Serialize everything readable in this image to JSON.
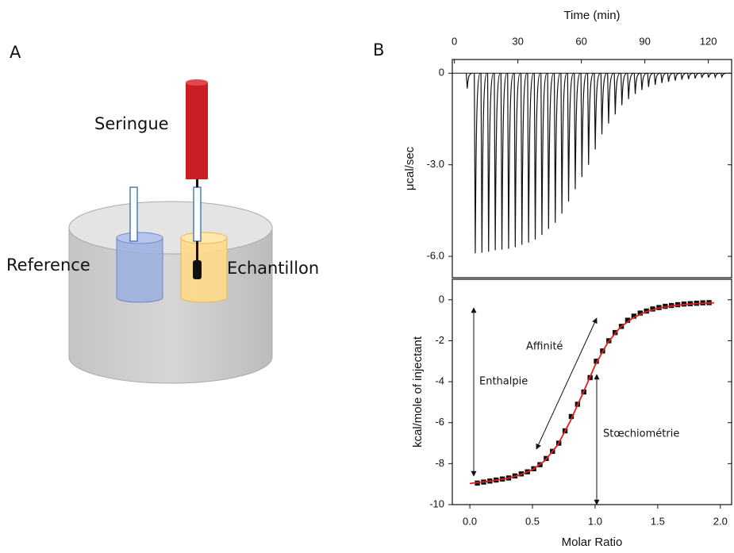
{
  "diagram": {
    "panel_label": "A",
    "syringe_label": "Seringue",
    "reference_label": "Reference",
    "sample_label": "Echantillon"
  },
  "panel_label_b": "B",
  "chart_data": [
    {
      "type": "thermogram",
      "xlabel": "Time (min)",
      "ylabel": "μcal/sec",
      "xlim": [
        -1,
        131
      ],
      "xticks": [
        0,
        30,
        60,
        90,
        120
      ],
      "ylim": [
        -6.7,
        0.45
      ],
      "yticks": [
        0,
        {
          "value": -3,
          "label": "-3.0"
        },
        {
          "value": -6,
          "label": "-6.0"
        }
      ],
      "series": [
        {
          "color": "#111111",
          "x": [
            5.6,
            9.4,
            12.55,
            15.7,
            18.85,
            22.0,
            25.15,
            28.3,
            31.45,
            34.6,
            37.75,
            40.9,
            44.05,
            47.2,
            50.35,
            53.5,
            56.65,
            59.8,
            62.95,
            66.1,
            69.25,
            72.4,
            75.55,
            78.7,
            81.85,
            85.0,
            88.15,
            91.3,
            94.45,
            97.6,
            100.75,
            103.9,
            107.05,
            110.2,
            113.35,
            116.5,
            119.65,
            122.8,
            125.95
          ],
          "values": [
            -0.5,
            -5.9,
            -5.88,
            -5.85,
            -5.8,
            -5.78,
            -5.75,
            -5.7,
            -5.62,
            -5.55,
            -5.45,
            -5.3,
            -5.1,
            -4.9,
            -4.6,
            -4.2,
            -3.8,
            -3.4,
            -3.0,
            -2.5,
            -2.0,
            -1.65,
            -1.35,
            -1.05,
            -0.85,
            -0.68,
            -0.55,
            -0.45,
            -0.38,
            -0.32,
            -0.28,
            -0.24,
            -0.21,
            -0.19,
            -0.17,
            -0.15,
            -0.14,
            -0.13,
            -0.12
          ]
        }
      ]
    },
    {
      "type": "scatter",
      "xlabel": "Molar Ratio",
      "ylabel": "kcal/mole of injectant",
      "xlim": [
        -0.14,
        2.09
      ],
      "xticks": [
        {
          "value": 0,
          "label": "0.0"
        },
        {
          "value": 0.5,
          "label": "0.5"
        },
        {
          "value": 1,
          "label": "1.0"
        },
        {
          "value": 1.5,
          "label": "1.5"
        },
        {
          "value": 2,
          "label": "2.0"
        }
      ],
      "ylim": [
        -10,
        1
      ],
      "yticks": [
        0,
        -2,
        -4,
        -6,
        -8,
        -10
      ],
      "annotations": [
        "Affinité",
        "Enthalpie",
        "Stœchiométrie"
      ],
      "series": [
        {
          "color": "#111111",
          "marker": "square",
          "x": [
            0.06,
            0.11,
            0.16,
            0.21,
            0.26,
            0.31,
            0.36,
            0.41,
            0.46,
            0.51,
            0.56,
            0.61,
            0.66,
            0.71,
            0.76,
            0.81,
            0.86,
            0.91,
            0.96,
            1.01,
            1.06,
            1.11,
            1.16,
            1.21,
            1.26,
            1.31,
            1.36,
            1.41,
            1.46,
            1.51,
            1.56,
            1.61,
            1.66,
            1.71,
            1.76,
            1.81,
            1.86,
            1.91
          ],
          "values": [
            -8.95,
            -8.9,
            -8.85,
            -8.8,
            -8.75,
            -8.7,
            -8.6,
            -8.5,
            -8.4,
            -8.25,
            -8.05,
            -7.75,
            -7.4,
            -7.0,
            -6.4,
            -5.7,
            -5.1,
            -4.5,
            -3.8,
            -3.0,
            -2.5,
            -2.0,
            -1.6,
            -1.3,
            -1.0,
            -0.8,
            -0.65,
            -0.55,
            -0.45,
            -0.38,
            -0.32,
            -0.28,
            -0.24,
            -0.21,
            -0.19,
            -0.17,
            -0.15,
            -0.14
          ]
        },
        {
          "color": "#e02020",
          "marker": "line",
          "x": [
            0,
            0.1,
            0.2,
            0.3,
            0.4,
            0.5,
            0.6,
            0.7,
            0.8,
            0.9,
            1.0,
            1.1,
            1.2,
            1.3,
            1.4,
            1.5,
            1.6,
            1.7,
            1.8,
            1.9,
            1.95
          ],
          "values": [
            -8.97,
            -8.9,
            -8.82,
            -8.72,
            -8.55,
            -8.3,
            -7.85,
            -7.1,
            -5.95,
            -4.6,
            -3.2,
            -2.1,
            -1.35,
            -0.9,
            -0.6,
            -0.42,
            -0.31,
            -0.24,
            -0.19,
            -0.16,
            -0.15
          ]
        }
      ]
    }
  ]
}
